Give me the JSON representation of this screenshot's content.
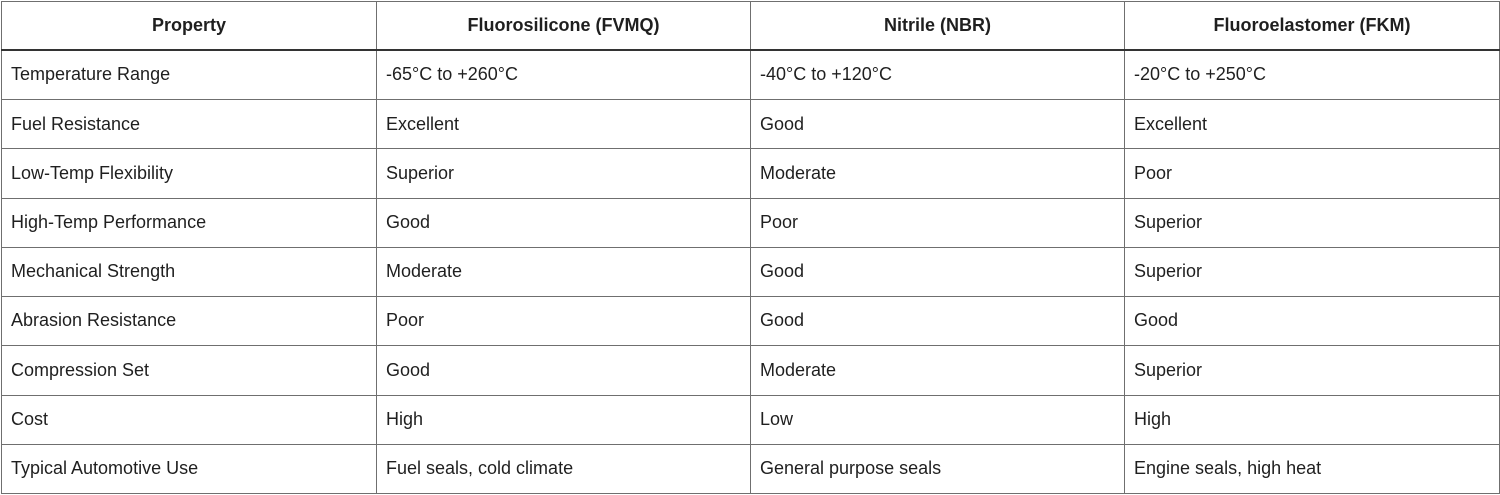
{
  "table": {
    "headers": [
      "Property",
      "Fluorosilicone (FVMQ)",
      "Nitrile (NBR)",
      "Fluoroelastomer (FKM)"
    ],
    "rows": [
      [
        "Temperature Range",
        "-65°C to +260°C",
        "-40°C to +120°C",
        "-20°C to +250°C"
      ],
      [
        "Fuel Resistance",
        "Excellent",
        "Good",
        "Excellent"
      ],
      [
        "Low-Temp Flexibility",
        "Superior",
        "Moderate",
        "Poor"
      ],
      [
        "High-Temp Performance",
        "Good",
        "Poor",
        "Superior"
      ],
      [
        "Mechanical Strength",
        "Moderate",
        "Good",
        "Superior"
      ],
      [
        "Abrasion Resistance",
        "Poor",
        "Good",
        "Good"
      ],
      [
        "Compression Set",
        "Good",
        "Moderate",
        "Superior"
      ],
      [
        "Cost",
        "High",
        "Low",
        "High"
      ],
      [
        "Typical Automotive Use",
        "Fuel seals, cold climate",
        "General purpose seals",
        "Engine seals, high heat"
      ]
    ]
  }
}
